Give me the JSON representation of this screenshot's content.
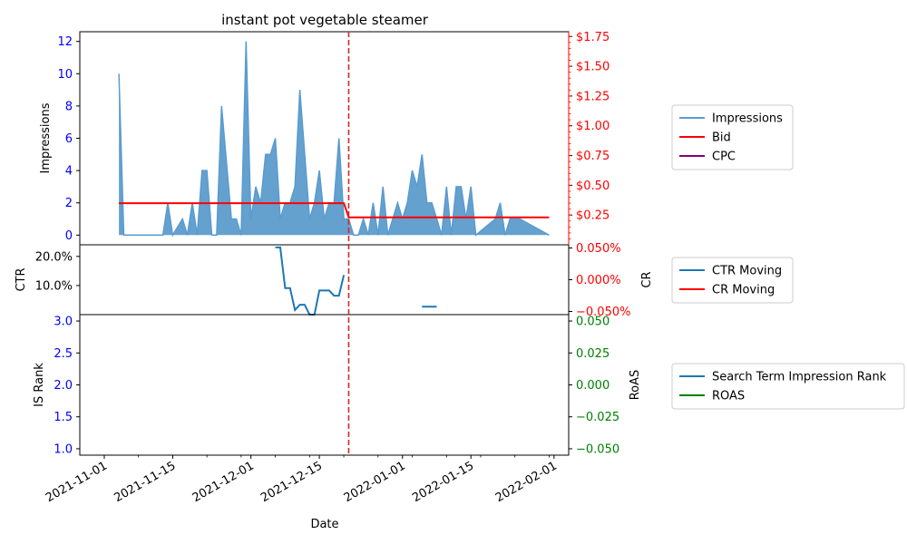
{
  "title": "instant pot vegetable steamer",
  "xlabel": "Date",
  "x_ticks": [
    "2021-11-01",
    "2021-11-15",
    "2021-12-01",
    "2021-12-15",
    "2022-01-01",
    "2022-01-15",
    "2022-02-01"
  ],
  "vline_date": "2021-12-21",
  "colors": {
    "impressions_line": "#5a9bd0",
    "impressions_fill": "#4a90c6",
    "bid": "#ff0000",
    "cpc": "#800080",
    "ctr": "#1f77b4",
    "cr": "#ff0000",
    "is_rank": "#1f77b4",
    "roas": "#008000",
    "vline": "#d62728",
    "left_ticks_top": "#0000ff",
    "right_ticks_top": "#ff0000",
    "right_ticks_bottom": "#008000"
  },
  "chart_data": [
    {
      "type": "area",
      "panel": "top",
      "ylabel_left": "Impressions",
      "ylim_left": [
        -0.6,
        12.6
      ],
      "yticks_left": [
        0,
        2,
        4,
        6,
        8,
        10,
        12
      ],
      "ytick_labels_left": [
        "0",
        "2",
        "4",
        "6",
        "8",
        "10",
        "12"
      ],
      "ylim_right": [
        0,
        1.79
      ],
      "yticks_right": [
        0.25,
        0.5,
        0.75,
        1.0,
        1.25,
        1.5,
        1.75
      ],
      "ytick_labels_right": [
        "$0.25",
        "$0.50",
        "$0.75",
        "$1.00",
        "$1.25",
        "$1.50",
        "$1.75"
      ],
      "legend": [
        "Impressions",
        "Bid",
        "CPC"
      ],
      "legend_placement": "right, outside",
      "series": [
        {
          "name": "Impressions",
          "axis": "left",
          "points": [
            [
              "2021-11-04",
              10
            ],
            [
              "2021-11-05",
              0
            ],
            [
              "2021-11-13",
              0
            ],
            [
              "2021-11-14",
              2
            ],
            [
              "2021-11-15",
              0
            ],
            [
              "2021-11-17",
              1
            ],
            [
              "2021-11-18",
              0
            ],
            [
              "2021-11-19",
              2
            ],
            [
              "2021-11-20",
              0
            ],
            [
              "2021-11-21",
              4
            ],
            [
              "2021-11-22",
              4
            ],
            [
              "2021-11-23",
              0
            ],
            [
              "2021-11-24",
              0
            ],
            [
              "2021-11-25",
              8
            ],
            [
              "2021-11-27",
              1
            ],
            [
              "2021-11-28",
              1
            ],
            [
              "2021-11-29",
              0
            ],
            [
              "2021-11-30",
              12
            ],
            [
              "2021-12-01",
              1
            ],
            [
              "2021-12-02",
              3
            ],
            [
              "2021-12-03",
              2
            ],
            [
              "2021-12-04",
              5
            ],
            [
              "2021-12-05",
              5
            ],
            [
              "2021-12-06",
              6
            ],
            [
              "2021-12-07",
              1
            ],
            [
              "2021-12-08",
              2
            ],
            [
              "2021-12-09",
              2
            ],
            [
              "2021-12-10",
              3
            ],
            [
              "2021-12-11",
              9
            ],
            [
              "2021-12-13",
              1
            ],
            [
              "2021-12-14",
              2
            ],
            [
              "2021-12-15",
              4
            ],
            [
              "2021-12-16",
              1
            ],
            [
              "2021-12-17",
              2
            ],
            [
              "2021-12-18",
              2
            ],
            [
              "2021-12-19",
              6
            ],
            [
              "2021-12-20",
              1
            ],
            [
              "2021-12-21",
              1
            ],
            [
              "2021-12-22",
              0
            ],
            [
              "2021-12-23",
              0
            ],
            [
              "2021-12-24",
              1
            ],
            [
              "2021-12-25",
              0
            ],
            [
              "2021-12-26",
              2
            ],
            [
              "2021-12-27",
              0
            ],
            [
              "2021-12-28",
              3
            ],
            [
              "2021-12-29",
              0
            ],
            [
              "2021-12-30",
              1
            ],
            [
              "2021-12-31",
              2
            ],
            [
              "2022-01-01",
              1
            ],
            [
              "2022-01-02",
              2
            ],
            [
              "2022-01-03",
              4
            ],
            [
              "2022-01-04",
              3
            ],
            [
              "2022-01-05",
              5
            ],
            [
              "2022-01-06",
              2
            ],
            [
              "2022-01-07",
              2
            ],
            [
              "2022-01-08",
              1
            ],
            [
              "2022-01-09",
              0
            ],
            [
              "2022-01-10",
              3
            ],
            [
              "2022-01-11",
              0
            ],
            [
              "2022-01-12",
              3
            ],
            [
              "2022-01-13",
              3
            ],
            [
              "2022-01-14",
              1
            ],
            [
              "2022-01-15",
              3
            ],
            [
              "2022-01-16",
              0
            ],
            [
              "2022-01-20",
              1
            ],
            [
              "2022-01-21",
              2
            ],
            [
              "2022-01-22",
              0
            ],
            [
              "2022-01-23",
              1
            ],
            [
              "2022-01-25",
              1
            ],
            [
              "2022-01-31",
              0
            ]
          ]
        },
        {
          "name": "Bid",
          "axis": "right",
          "points": [
            [
              "2021-11-04",
              0.35
            ],
            [
              "2021-12-20",
              0.35
            ],
            [
              "2021-12-21",
              0.23
            ],
            [
              "2022-01-31",
              0.23
            ]
          ]
        },
        {
          "name": "CPC",
          "axis": "right",
          "points": []
        }
      ]
    },
    {
      "type": "line",
      "panel": "middle",
      "ylabel_left": "CTR",
      "ylabel_right": "CR",
      "ylim_left": [
        0.0,
        0.24
      ],
      "yticks_left": [
        0.1,
        0.2
      ],
      "ytick_labels_left": [
        "10.0%",
        "20.0%"
      ],
      "ylim_right": [
        -0.055,
        0.055
      ],
      "yticks_right": [
        -0.05,
        0.0,
        0.05
      ],
      "ytick_labels_right": [
        "−0.050%",
        "0.000%",
        "0.050%"
      ],
      "legend": [
        "CTR Moving",
        "CR Moving"
      ],
      "legend_placement": "right, outside",
      "series": [
        {
          "name": "CTR Moving",
          "axis": "left",
          "segments": [
            [
              [
                "2021-12-06",
                0.231
              ],
              [
                "2021-12-07",
                0.231
              ],
              [
                "2021-12-08",
                0.091
              ],
              [
                "2021-12-09",
                0.091
              ],
              [
                "2021-12-10",
                0.016
              ],
              [
                "2021-12-11",
                0.034
              ],
              [
                "2021-12-12",
                0.034
              ],
              [
                "2021-12-13",
                0.0
              ],
              [
                "2021-12-14",
                0.0
              ],
              [
                "2021-12-15",
                0.083
              ],
              [
                "2021-12-16",
                0.083
              ],
              [
                "2021-12-17",
                0.083
              ],
              [
                "2021-12-18",
                0.065
              ],
              [
                "2021-12-19",
                0.065
              ],
              [
                "2021-12-20",
                0.136
              ]
            ],
            [
              [
                "2022-01-05",
                0.027
              ],
              [
                "2022-01-08",
                0.027
              ]
            ]
          ]
        },
        {
          "name": "CR Moving",
          "axis": "right",
          "segments": []
        }
      ]
    },
    {
      "type": "line",
      "panel": "bottom",
      "ylabel_left": "IS Rank",
      "ylabel_right": "RoAS",
      "ylim_left": [
        0.9,
        3.1
      ],
      "yticks_left": [
        1.0,
        1.5,
        2.0,
        2.5,
        3.0
      ],
      "ytick_labels_left": [
        "1.0",
        "1.5",
        "2.0",
        "2.5",
        "3.0"
      ],
      "ylim_right": [
        -0.055,
        0.055
      ],
      "yticks_right": [
        -0.05,
        -0.025,
        0.0,
        0.025,
        0.05
      ],
      "ytick_labels_right": [
        "−0.050",
        "−0.025",
        "0.000",
        "0.025",
        "0.050"
      ],
      "legend": [
        "Search Term Impression Rank",
        "ROAS"
      ],
      "legend_placement": "right, outside",
      "series": [
        {
          "name": "Search Term Impression Rank",
          "axis": "left",
          "points": []
        },
        {
          "name": "ROAS",
          "axis": "right",
          "points": []
        }
      ]
    }
  ]
}
